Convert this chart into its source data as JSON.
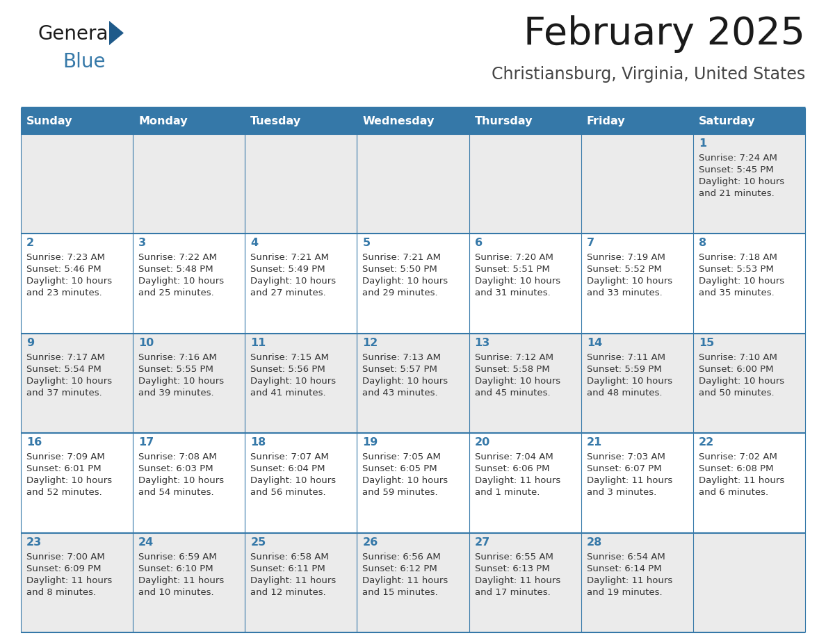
{
  "title": "February 2025",
  "subtitle": "Christiansburg, Virginia, United States",
  "header_bg_color": "#3578a8",
  "header_text_color": "#ffffff",
  "cell_bg_row0": "#ebebeb",
  "cell_bg_row1": "#ffffff",
  "cell_bg_row2": "#ebebeb",
  "cell_bg_row3": "#ffffff",
  "cell_bg_row4": "#ebebeb",
  "day_names": [
    "Sunday",
    "Monday",
    "Tuesday",
    "Wednesday",
    "Thursday",
    "Friday",
    "Saturday"
  ],
  "title_color": "#1a1a1a",
  "subtitle_color": "#444444",
  "day_number_color": "#3578a8",
  "info_text_color": "#333333",
  "border_color": "#3578a8",
  "logo_general_color": "#1a1a1a",
  "logo_blue_color": "#3578a8",
  "logo_triangle_color": "#1f5a8a",
  "days": [
    {
      "date": 1,
      "row": 0,
      "col": 6,
      "sunrise": "7:24 AM",
      "sunset": "5:45 PM",
      "daylight_line1": "Daylight: 10 hours",
      "daylight_line2": "and 21 minutes."
    },
    {
      "date": 2,
      "row": 1,
      "col": 0,
      "sunrise": "7:23 AM",
      "sunset": "5:46 PM",
      "daylight_line1": "Daylight: 10 hours",
      "daylight_line2": "and 23 minutes."
    },
    {
      "date": 3,
      "row": 1,
      "col": 1,
      "sunrise": "7:22 AM",
      "sunset": "5:48 PM",
      "daylight_line1": "Daylight: 10 hours",
      "daylight_line2": "and 25 minutes."
    },
    {
      "date": 4,
      "row": 1,
      "col": 2,
      "sunrise": "7:21 AM",
      "sunset": "5:49 PM",
      "daylight_line1": "Daylight: 10 hours",
      "daylight_line2": "and 27 minutes."
    },
    {
      "date": 5,
      "row": 1,
      "col": 3,
      "sunrise": "7:21 AM",
      "sunset": "5:50 PM",
      "daylight_line1": "Daylight: 10 hours",
      "daylight_line2": "and 29 minutes."
    },
    {
      "date": 6,
      "row": 1,
      "col": 4,
      "sunrise": "7:20 AM",
      "sunset": "5:51 PM",
      "daylight_line1": "Daylight: 10 hours",
      "daylight_line2": "and 31 minutes."
    },
    {
      "date": 7,
      "row": 1,
      "col": 5,
      "sunrise": "7:19 AM",
      "sunset": "5:52 PM",
      "daylight_line1": "Daylight: 10 hours",
      "daylight_line2": "and 33 minutes."
    },
    {
      "date": 8,
      "row": 1,
      "col": 6,
      "sunrise": "7:18 AM",
      "sunset": "5:53 PM",
      "daylight_line1": "Daylight: 10 hours",
      "daylight_line2": "and 35 minutes."
    },
    {
      "date": 9,
      "row": 2,
      "col": 0,
      "sunrise": "7:17 AM",
      "sunset": "5:54 PM",
      "daylight_line1": "Daylight: 10 hours",
      "daylight_line2": "and 37 minutes."
    },
    {
      "date": 10,
      "row": 2,
      "col": 1,
      "sunrise": "7:16 AM",
      "sunset": "5:55 PM",
      "daylight_line1": "Daylight: 10 hours",
      "daylight_line2": "and 39 minutes."
    },
    {
      "date": 11,
      "row": 2,
      "col": 2,
      "sunrise": "7:15 AM",
      "sunset": "5:56 PM",
      "daylight_line1": "Daylight: 10 hours",
      "daylight_line2": "and 41 minutes."
    },
    {
      "date": 12,
      "row": 2,
      "col": 3,
      "sunrise": "7:13 AM",
      "sunset": "5:57 PM",
      "daylight_line1": "Daylight: 10 hours",
      "daylight_line2": "and 43 minutes."
    },
    {
      "date": 13,
      "row": 2,
      "col": 4,
      "sunrise": "7:12 AM",
      "sunset": "5:58 PM",
      "daylight_line1": "Daylight: 10 hours",
      "daylight_line2": "and 45 minutes."
    },
    {
      "date": 14,
      "row": 2,
      "col": 5,
      "sunrise": "7:11 AM",
      "sunset": "5:59 PM",
      "daylight_line1": "Daylight: 10 hours",
      "daylight_line2": "and 48 minutes."
    },
    {
      "date": 15,
      "row": 2,
      "col": 6,
      "sunrise": "7:10 AM",
      "sunset": "6:00 PM",
      "daylight_line1": "Daylight: 10 hours",
      "daylight_line2": "and 50 minutes."
    },
    {
      "date": 16,
      "row": 3,
      "col": 0,
      "sunrise": "7:09 AM",
      "sunset": "6:01 PM",
      "daylight_line1": "Daylight: 10 hours",
      "daylight_line2": "and 52 minutes."
    },
    {
      "date": 17,
      "row": 3,
      "col": 1,
      "sunrise": "7:08 AM",
      "sunset": "6:03 PM",
      "daylight_line1": "Daylight: 10 hours",
      "daylight_line2": "and 54 minutes."
    },
    {
      "date": 18,
      "row": 3,
      "col": 2,
      "sunrise": "7:07 AM",
      "sunset": "6:04 PM",
      "daylight_line1": "Daylight: 10 hours",
      "daylight_line2": "and 56 minutes."
    },
    {
      "date": 19,
      "row": 3,
      "col": 3,
      "sunrise": "7:05 AM",
      "sunset": "6:05 PM",
      "daylight_line1": "Daylight: 10 hours",
      "daylight_line2": "and 59 minutes."
    },
    {
      "date": 20,
      "row": 3,
      "col": 4,
      "sunrise": "7:04 AM",
      "sunset": "6:06 PM",
      "daylight_line1": "Daylight: 11 hours",
      "daylight_line2": "and 1 minute."
    },
    {
      "date": 21,
      "row": 3,
      "col": 5,
      "sunrise": "7:03 AM",
      "sunset": "6:07 PM",
      "daylight_line1": "Daylight: 11 hours",
      "daylight_line2": "and 3 minutes."
    },
    {
      "date": 22,
      "row": 3,
      "col": 6,
      "sunrise": "7:02 AM",
      "sunset": "6:08 PM",
      "daylight_line1": "Daylight: 11 hours",
      "daylight_line2": "and 6 minutes."
    },
    {
      "date": 23,
      "row": 4,
      "col": 0,
      "sunrise": "7:00 AM",
      "sunset": "6:09 PM",
      "daylight_line1": "Daylight: 11 hours",
      "daylight_line2": "and 8 minutes."
    },
    {
      "date": 24,
      "row": 4,
      "col": 1,
      "sunrise": "6:59 AM",
      "sunset": "6:10 PM",
      "daylight_line1": "Daylight: 11 hours",
      "daylight_line2": "and 10 minutes."
    },
    {
      "date": 25,
      "row": 4,
      "col": 2,
      "sunrise": "6:58 AM",
      "sunset": "6:11 PM",
      "daylight_line1": "Daylight: 11 hours",
      "daylight_line2": "and 12 minutes."
    },
    {
      "date": 26,
      "row": 4,
      "col": 3,
      "sunrise": "6:56 AM",
      "sunset": "6:12 PM",
      "daylight_line1": "Daylight: 11 hours",
      "daylight_line2": "and 15 minutes."
    },
    {
      "date": 27,
      "row": 4,
      "col": 4,
      "sunrise": "6:55 AM",
      "sunset": "6:13 PM",
      "daylight_line1": "Daylight: 11 hours",
      "daylight_line2": "and 17 minutes."
    },
    {
      "date": 28,
      "row": 4,
      "col": 5,
      "sunrise": "6:54 AM",
      "sunset": "6:14 PM",
      "daylight_line1": "Daylight: 11 hours",
      "daylight_line2": "and 19 minutes."
    }
  ]
}
